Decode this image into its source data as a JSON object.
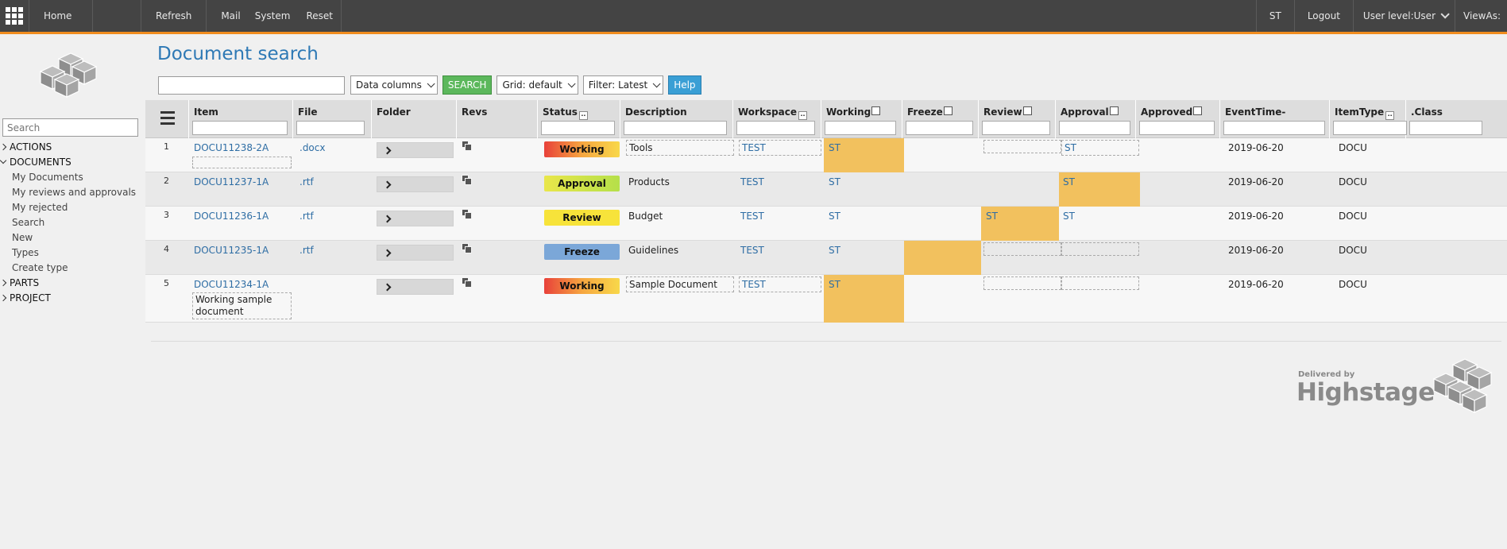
{
  "topbar": {
    "home": "Home",
    "refresh": "Refresh",
    "mail": "Mail",
    "system": "System",
    "reset": "Reset",
    "user": "ST",
    "logout": "Logout",
    "user_level": "User level:User",
    "view_as": "ViewAs:"
  },
  "sidebar": {
    "search_placeholder": "Search",
    "sections": {
      "actions": "ACTIONS",
      "documents": "DOCUMENTS",
      "parts": "PARTS",
      "project": "PROJECT"
    },
    "documents_items": [
      "My Documents",
      "My reviews and approvals",
      "My rejected",
      "Search",
      "New",
      "Types",
      "Create type"
    ]
  },
  "page": {
    "title": "Document search"
  },
  "toolbar": {
    "data_columns": "Data columns",
    "search": "SEARCH",
    "grid": "Grid: default",
    "filter": "Filter: Latest",
    "help": "Help"
  },
  "columns": {
    "item": "Item",
    "file": "File",
    "folder": "Folder",
    "revs": "Revs",
    "status": "Status",
    "description": "Description",
    "workspace": "Workspace",
    "working": "Working",
    "freeze": "Freeze",
    "review": "Review",
    "approval": "Approval",
    "approved": "Approved",
    "eventtime": "EventTime-",
    "itemtype": "ItemType",
    "class": ".Class"
  },
  "rows": [
    {
      "num": "1",
      "item": "DOCU11238-2A",
      "file": ".docx",
      "status": "Working",
      "description": "Tools",
      "workspace": "TEST",
      "working": "ST",
      "approval": "ST",
      "eventtime": "2019-06-20",
      "itemtype": "DOCU"
    },
    {
      "num": "2",
      "item": "DOCU11237-1A",
      "file": ".rtf",
      "status": "Approval",
      "description": "Products",
      "workspace": "TEST",
      "working": "ST",
      "approval": "ST",
      "eventtime": "2019-06-20",
      "itemtype": "DOCU"
    },
    {
      "num": "3",
      "item": "DOCU11236-1A",
      "file": ".rtf",
      "status": "Review",
      "description": "Budget",
      "workspace": "TEST",
      "working": "ST",
      "review": "ST",
      "approval": "ST",
      "eventtime": "2019-06-20",
      "itemtype": "DOCU"
    },
    {
      "num": "4",
      "item": "DOCU11235-1A",
      "file": ".rtf",
      "status": "Freeze",
      "description": "Guidelines",
      "workspace": "TEST",
      "working": "ST",
      "eventtime": "2019-06-20",
      "itemtype": "DOCU"
    },
    {
      "num": "5",
      "item": "DOCU11234-1A",
      "item_note": "Working sample document",
      "status": "Working",
      "description": "Sample Document",
      "workspace": "TEST",
      "working": "ST",
      "eventtime": "2019-06-20",
      "itemtype": "DOCU"
    }
  ],
  "footer": {
    "delivered_by": "Delivered by",
    "brand": "Highstage"
  },
  "colors": {
    "accent": "#f08c1e",
    "link": "#2e6da4",
    "title": "#2e79b5",
    "highlight": "#f2c15e"
  }
}
